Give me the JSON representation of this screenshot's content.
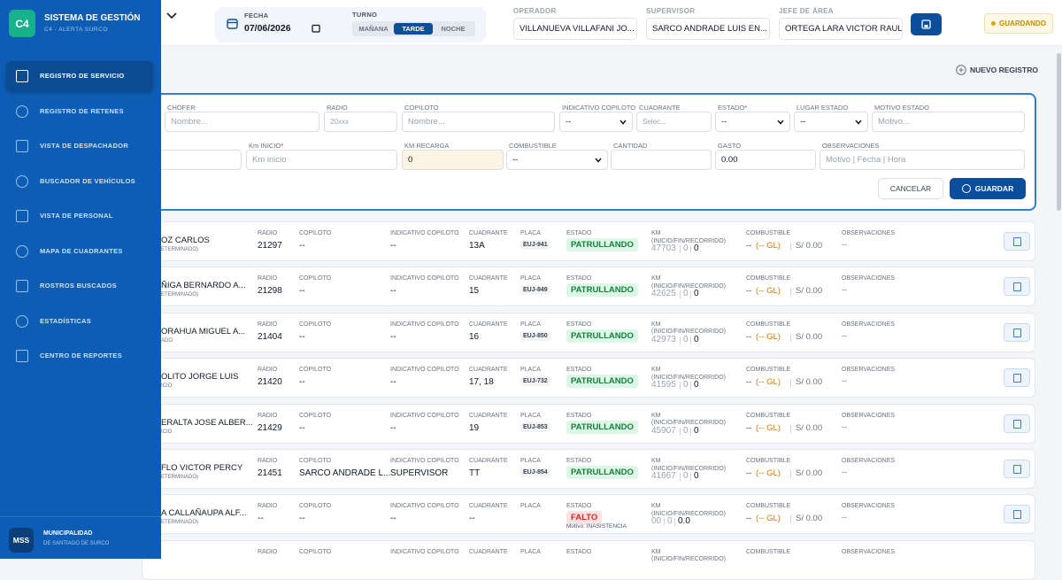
{
  "sidebar": {
    "logo": "C4",
    "title": "SISTEMA DE GESTIÓN",
    "subtitle": "C4 - ALERTA SURCO",
    "active": 0,
    "nav": [
      "REGISTRO DE SERVICIO",
      "REGISTRO DE RETENES",
      "VISTA DE DESPACHADOR",
      "BUSCADOR DE VEHÍCULOS",
      "VISTA DE PERSONAL",
      "MAPA DE CUADRANTES",
      "ROSTROS BUSCADOS",
      "ESTADÍSTICAS",
      "CENTRO DE REPORTES"
    ],
    "footer": {
      "badge": "MSS",
      "org": "MUNICIPALIDAD",
      "org_sub": "DE SANTIAGO DE SURCO"
    }
  },
  "topbar": {
    "fecha_label": "FECHA",
    "fecha": "07/06/2026",
    "turno_label": "TURNO",
    "turnos": [
      "MAÑANA",
      "TARDE",
      "NOCHE"
    ],
    "turno_active": 1,
    "operador_label": "OPERADOR",
    "operador": "VILLANUEVA VILLAFANI JO...",
    "supervisor_label": "SUPERVISOR",
    "supervisor": "SARCO ANDRADE LUIS EN...",
    "jefe_label": "JEFE DE ÁREA",
    "jefe": "ORTEGA LARA VICTOR RAUL",
    "status": "GUARDANDO"
  },
  "new_record": "NUEVO REGISTRO",
  "form": {
    "rows": [
      [
        {
          "label": "CHOFER",
          "placeholder": "Nombre..."
        },
        {
          "label": "RADIO",
          "placeholder": "20xxx"
        },
        {
          "label": "COPILOTO",
          "placeholder": "Nombre..."
        },
        {
          "label": "INDICATIVO COPILOTO",
          "value": "--",
          "kind": "select"
        },
        {
          "label": "CUADRANTE",
          "placeholder": "Selec..."
        },
        {
          "label": "ESTADO",
          "mark": "*",
          "value": "--",
          "kind": "select"
        },
        {
          "label": "LUGAR ESTADO",
          "value": "--",
          "kind": "select"
        },
        {
          "label": "MOTIVO ESTADO",
          "placeholder": "Motivo..."
        }
      ],
      [
        {
          "kind": "input"
        },
        {
          "label": "Km INICIO",
          "mark": "*",
          "placeholder": "Km inicio"
        },
        {
          "label": "KM RECARGA",
          "value": "0",
          "highlight": true
        },
        {
          "label": "COMBUSTIBLE",
          "value": "--",
          "kind": "select"
        },
        {
          "label": "CANTIDAD"
        },
        {
          "label": "GASTO",
          "value": "0.00"
        },
        {
          "label": "OBSERVACIONES",
          "placeholder": "Motivo | Fecha | Hora"
        }
      ]
    ],
    "cancel": "CANCELAR",
    "save": "GUARDAR"
  },
  "record_labels": {
    "radio": "RADIO",
    "copiloto": "COPILOTO",
    "indicativo": "INDICATIVO COPILOTO",
    "cuadrante": "CUADRANTE",
    "placa": "PLACA",
    "estado": "ESTADO",
    "km": "KM (INICIO/FIN/RECORRIDO)",
    "combustible": "COMBUSTIBLE",
    "observaciones": "OBSERVACIONES"
  },
  "records": [
    {
      "name": "OZ CARLOS",
      "sub": "ETERMINADO)",
      "radio": "21297",
      "copiloto": "--",
      "indicativo": "--",
      "cuadrante": "13A",
      "placa": "EUJ-941",
      "estado": "PATRULLANDO",
      "tone": "green",
      "km": [
        "47703",
        "0",
        "0"
      ],
      "combustible": "--",
      "galones": "(-- GL)",
      "gasto": "S/ 0.00",
      "observaciones": "--"
    },
    {
      "name": "ÑIGA BERNARDO A...",
      "sub": "ETERMINADO)",
      "radio": "21298",
      "copiloto": "--",
      "indicativo": "--",
      "cuadrante": "15",
      "placa": "EUJ-849",
      "estado": "PATRULLANDO",
      "tone": "green",
      "km": [
        "42625",
        "0",
        "0"
      ],
      "combustible": "--",
      "galones": "(-- GL)",
      "gasto": "S/ 0.00",
      "observaciones": "--"
    },
    {
      "name": "ORAHUA MIGUEL A...",
      "sub": "ADO",
      "radio": "21404",
      "copiloto": "--",
      "indicativo": "--",
      "cuadrante": "16",
      "placa": "EUJ-850",
      "estado": "PATRULLANDO",
      "tone": "green",
      "km": [
        "42973",
        "0",
        "0"
      ],
      "combustible": "--",
      "galones": "(-- GL)",
      "gasto": "S/ 0.00",
      "observaciones": "--"
    },
    {
      "name": "OLITO JORGE LUIS",
      "sub": "ICIO",
      "radio": "21420",
      "copiloto": "--",
      "indicativo": "--",
      "cuadrante": "17, 18",
      "placa": "EUJ-732",
      "estado": "PATRULLANDO",
      "tone": "green",
      "km": [
        "41595",
        "0",
        "0"
      ],
      "combustible": "--",
      "galones": "(-- GL)",
      "gasto": "S/ 0.00",
      "observaciones": "--"
    },
    {
      "name": "ERALTA JOSE ALBER...",
      "sub": "ICIO",
      "radio": "21429",
      "copiloto": "--",
      "indicativo": "--",
      "cuadrante": "19",
      "placa": "EUJ-853",
      "estado": "PATRULLANDO",
      "tone": "green",
      "km": [
        "45907",
        "0",
        "0"
      ],
      "combustible": "--",
      "galones": "(-- GL)",
      "gasto": "S/ 0.00",
      "observaciones": "--"
    },
    {
      "name": "FLO VICTOR PERCY",
      "sub": "ETERMINADO)",
      "radio": "21451",
      "copiloto": "SARCO ANDRADE L...",
      "indicativo": "SUPERVISOR",
      "cuadrante": "TT",
      "placa": "EUJ-854",
      "estado": "PATRULLANDO",
      "tone": "green",
      "km": [
        "41667",
        "0",
        "0"
      ],
      "combustible": "--",
      "galones": "(-- GL)",
      "gasto": "S/ 0.00",
      "observaciones": "--"
    },
    {
      "name": "A CALLAÑAUPA ALF...",
      "sub": "ETERMINADO)",
      "radio": "--",
      "copiloto": "--",
      "indicativo": "--",
      "cuadrante": "--",
      "estado": "FALTO",
      "tone": "red",
      "motivo": "Motivo: INASISTENCIA",
      "km": [
        "00",
        "0",
        "0.0"
      ],
      "combustible": "--",
      "galones": "(-- GL)",
      "gasto": "S/ 0.00",
      "observaciones": "--"
    }
  ]
}
